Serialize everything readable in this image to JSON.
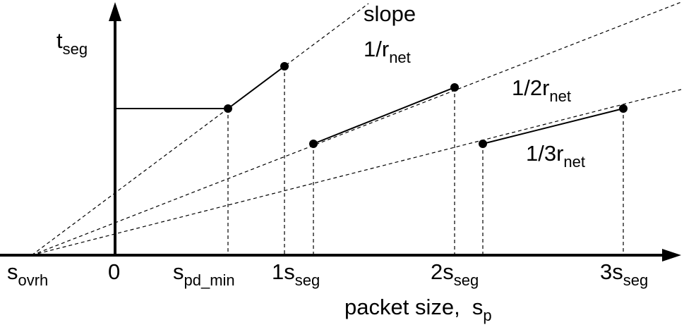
{
  "y_axis_label": {
    "text": "t",
    "sub": "seg"
  },
  "slope_labels": [
    {
      "text": "slope"
    },
    {
      "text": "1/r",
      "sub": "net"
    },
    {
      "text": "1/2r",
      "sub": "net"
    },
    {
      "text": "1/3r",
      "sub": "net"
    }
  ],
  "x_axis_labels": [
    {
      "text": "s",
      "sub": "ovrh"
    },
    {
      "text": "0"
    },
    {
      "text": "s",
      "sub": "pd_min"
    },
    {
      "text": "1s",
      "sub": "seg"
    },
    {
      "text": "2s",
      "sub": "seg"
    },
    {
      "text": "3s",
      "sub": "seg"
    }
  ],
  "x_axis_title": {
    "text": "packet size,  s",
    "sub": "p"
  }
}
